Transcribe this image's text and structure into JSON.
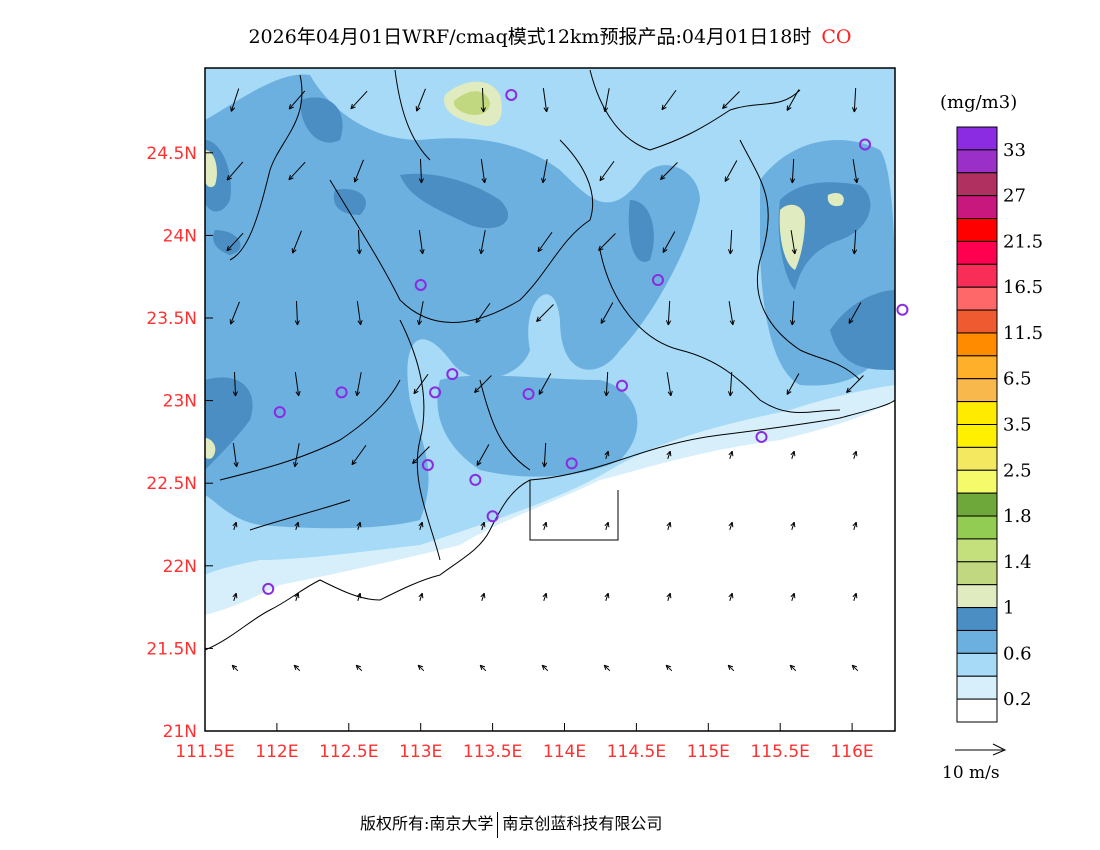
{
  "title": {
    "main": "2026年04月01日WRF/cmaq模式12km预报产品:04月01日18时",
    "species": "CO"
  },
  "map": {
    "lon_range": [
      111.5,
      116.5
    ],
    "lat_range": [
      21,
      25
    ],
    "y_ticks": [
      "24.5N",
      "24N",
      "23.5N",
      "23N",
      "22.5N",
      "22N",
      "21.5N",
      "21N"
    ],
    "y_tick_values": [
      24.5,
      24,
      23.5,
      23,
      22.5,
      22,
      21.5,
      21
    ],
    "x_ticks": [
      "111.5E",
      "112E",
      "112.5E",
      "113E",
      "113.5E",
      "114E",
      "114.5E",
      "115E",
      "115.5E",
      "116E"
    ],
    "x_tick_values": [
      111.5,
      112,
      112.5,
      113,
      113.5,
      114,
      114.5,
      115,
      115.5,
      116
    ],
    "stations": [
      [
        113.63,
        24.85
      ],
      [
        116.09,
        24.55
      ],
      [
        113.0,
        23.7
      ],
      [
        114.65,
        23.73
      ],
      [
        116.35,
        23.55
      ],
      [
        112.45,
        23.05
      ],
      [
        112.02,
        22.93
      ],
      [
        113.22,
        23.16
      ],
      [
        113.1,
        23.05
      ],
      [
        113.75,
        23.04
      ],
      [
        114.4,
        23.09
      ],
      [
        115.37,
        22.78
      ],
      [
        113.05,
        22.61
      ],
      [
        114.05,
        22.62
      ],
      [
        113.38,
        22.52
      ],
      [
        113.5,
        22.3
      ],
      [
        111.94,
        21.86
      ]
    ],
    "station_color": "#8a2be2"
  },
  "colorbar": {
    "unit": "(mg/m3)",
    "colors": [
      "#8b2be2",
      "#9b30c8",
      "#b03060",
      "#c8187e",
      "#ff0000",
      "#ff0050",
      "#f82e58",
      "#ff6868",
      "#f05a30",
      "#ff8c00",
      "#ffb02a",
      "#f8b84c",
      "#ffeb00",
      "#fff000",
      "#f4e860",
      "#f4fa6a",
      "#6ea83a",
      "#92cc52",
      "#c4e07c",
      "#c2d880",
      "#e0ecc0",
      "#4a8ec4",
      "#6cb0e0",
      "#a6daf6",
      "#d6effb",
      "#ffffff"
    ],
    "labels": [
      "33",
      "27",
      "21.5",
      "16.5",
      "11.5",
      "6.5",
      "3.5",
      "2.5",
      "1.8",
      "1.4",
      "1",
      "0.6",
      "0.2"
    ],
    "wind_ref": "10 m/s"
  },
  "footer": {
    "left": "版权所有:南京大学",
    "right": "南京创蓝科技有限公司"
  }
}
